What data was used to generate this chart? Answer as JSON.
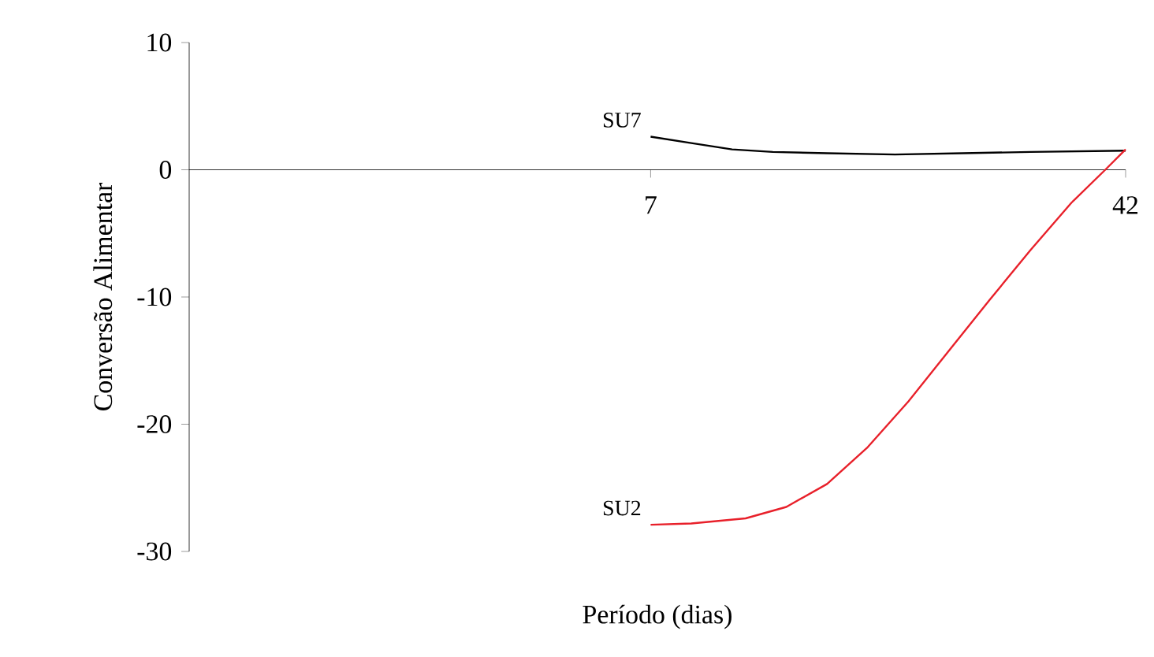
{
  "chart_data": {
    "type": "line",
    "xlabel": "Período (dias)",
    "ylabel": "Conversão Alimentar",
    "xlim": [
      -27,
      42
    ],
    "xticks": [
      7,
      42
    ],
    "ylim": [
      -30,
      10
    ],
    "yticks": [
      -30,
      -20,
      -10,
      0,
      10
    ],
    "series": [
      {
        "name": "SU7",
        "color": "#000000",
        "x": [
          7,
          10,
          13,
          16,
          20,
          25,
          30,
          35,
          42
        ],
        "values": [
          2.6,
          2.1,
          1.6,
          1.4,
          1.3,
          1.2,
          1.3,
          1.4,
          1.5
        ]
      },
      {
        "name": "SU2",
        "color": "#e8202a",
        "x": [
          7,
          10,
          14,
          17,
          20,
          23,
          26,
          29,
          32,
          35,
          38,
          40.5,
          42
        ],
        "values": [
          -27.9,
          -27.8,
          -27.4,
          -26.5,
          -24.7,
          -21.8,
          -18.2,
          -14.2,
          -10.2,
          -6.3,
          -2.6,
          0,
          1.6
        ]
      }
    ]
  }
}
